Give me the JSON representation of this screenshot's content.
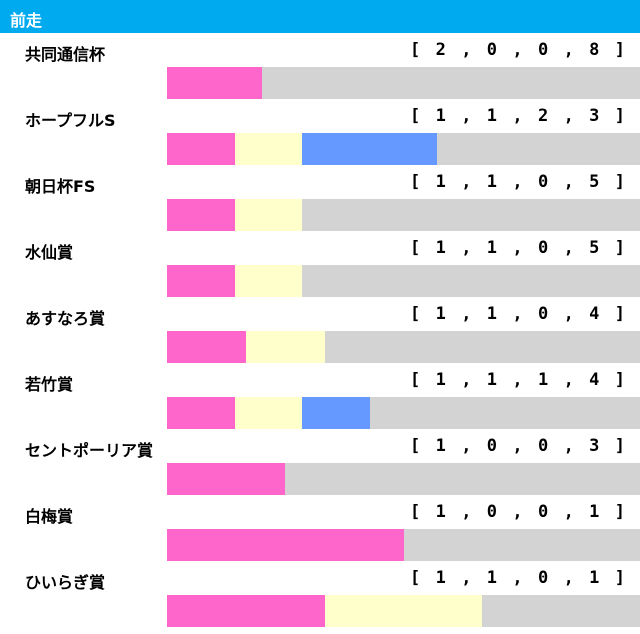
{
  "header": {
    "title": "前走"
  },
  "colors": {
    "header_bg": "#00aaee",
    "first": "#ff66cc",
    "second": "#ffffcc",
    "third": "#6699ff",
    "other": "#d3d3d3"
  },
  "chart_data": {
    "type": "bar",
    "stacked": true,
    "orientation": "horizontal",
    "title": "前走",
    "categories": [
      "共同通信杯",
      "ホープフルS",
      "朝日杯FS",
      "水仙賞",
      "あすなろ賞",
      "若竹賞",
      "セントポーリア賞",
      "白梅賞",
      "ひいらぎ賞"
    ],
    "records": [
      [
        2,
        0,
        0,
        8
      ],
      [
        1,
        1,
        2,
        3
      ],
      [
        1,
        1,
        0,
        5
      ],
      [
        1,
        1,
        0,
        5
      ],
      [
        1,
        1,
        0,
        4
      ],
      [
        1,
        1,
        1,
        4
      ],
      [
        1,
        0,
        0,
        3
      ],
      [
        1,
        0,
        0,
        1
      ],
      [
        1,
        1,
        0,
        1
      ]
    ],
    "series": [
      {
        "values": [
          2,
          1,
          1,
          1,
          1,
          1,
          1,
          1,
          1
        ],
        "color": "#ff66cc"
      },
      {
        "values": [
          0,
          1,
          1,
          1,
          1,
          1,
          0,
          0,
          1
        ],
        "color": "#ffffcc"
      },
      {
        "values": [
          0,
          2,
          0,
          0,
          0,
          1,
          0,
          0,
          0
        ],
        "color": "#6699ff"
      },
      {
        "values": [
          8,
          3,
          5,
          5,
          4,
          4,
          3,
          1,
          1
        ],
        "color": "#d3d3d3"
      }
    ]
  }
}
